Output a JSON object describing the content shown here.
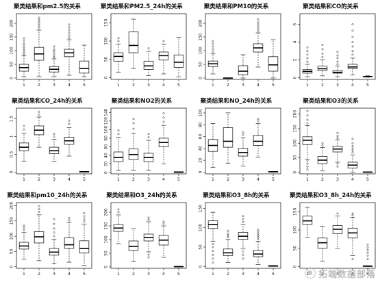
{
  "watermark": {
    "text": "拓端数据部落",
    "icon": "wechat-logo-icon"
  },
  "chart_data": [
    {
      "type": "box",
      "title": "聚类结果和pm2.5的关系",
      "categories": [
        "1",
        "2",
        "3",
        "4",
        "5"
      ],
      "yticks": [
        0,
        50,
        100,
        150,
        200
      ],
      "ylim": [
        -5,
        235
      ],
      "boxes": [
        {
          "whislo": 5,
          "q1": 25,
          "med": 38,
          "q3": 50,
          "whishi": 82,
          "outliers": [
            88,
            95,
            102,
            110,
            118,
            125,
            135,
            145
          ]
        },
        {
          "whislo": 5,
          "q1": 65,
          "med": 88,
          "q3": 112,
          "whishi": 175,
          "outliers": [
            182,
            190,
            198,
            205,
            212,
            220
          ]
        },
        {
          "whislo": 5,
          "q1": 22,
          "med": 32,
          "q3": 42,
          "whishi": 70,
          "outliers": [
            75,
            82,
            90,
            98,
            105,
            115
          ]
        },
        {
          "whislo": 10,
          "q1": 78,
          "med": 92,
          "q3": 105,
          "whishi": 140,
          "outliers": [
            146,
            155,
            165,
            175,
            185,
            195
          ]
        },
        {
          "whislo": 5,
          "q1": 18,
          "med": 35,
          "q3": 62,
          "whishi": 120,
          "outliers": []
        }
      ]
    },
    {
      "type": "box",
      "title": "聚类结果和PM2.5_24h的关系",
      "categories": [
        "1",
        "2",
        "3",
        "4",
        "5"
      ],
      "yticks": [
        0,
        50,
        100,
        150
      ],
      "ylim": [
        -5,
        175
      ],
      "boxes": [
        {
          "whislo": 15,
          "q1": 45,
          "med": 58,
          "q3": 68,
          "whishi": 92,
          "outliers": [
            100,
            108
          ]
        },
        {
          "whislo": 25,
          "q1": 68,
          "med": 88,
          "q3": 125,
          "whishi": 160,
          "outliers": []
        },
        {
          "whislo": 5,
          "q1": 22,
          "med": 32,
          "q3": 45,
          "whishi": 72,
          "outliers": [
            80
          ]
        },
        {
          "whislo": 10,
          "q1": 48,
          "med": 60,
          "q3": 70,
          "whishi": 92,
          "outliers": [
            100
          ]
        },
        {
          "whislo": 2,
          "q1": 28,
          "med": 42,
          "q3": 62,
          "whishi": 110,
          "outliers": []
        }
      ]
    },
    {
      "type": "box",
      "title": "聚类结果和PM10的关系",
      "categories": [
        "1",
        "2",
        "3",
        "4",
        "5"
      ],
      "yticks": [
        0,
        50,
        100,
        150,
        200
      ],
      "ylim": [
        -5,
        235
      ],
      "boxes": [
        {
          "whislo": 15,
          "q1": 42,
          "med": 52,
          "q3": 62,
          "whishi": 88,
          "outliers": [
            95,
            105,
            115,
            125,
            135
          ]
        },
        {
          "whislo": 0,
          "q1": 0,
          "med": 0,
          "q3": 0,
          "whishi": 0,
          "outliers": []
        },
        {
          "whislo": 0,
          "q1": 12,
          "med": 25,
          "q3": 45,
          "whishi": 85,
          "outliers": []
        },
        {
          "whislo": 40,
          "q1": 95,
          "med": 110,
          "q3": 125,
          "whishi": 165,
          "outliers": [
            172,
            180,
            188,
            196,
            205,
            215
          ]
        },
        {
          "whislo": 0,
          "q1": 25,
          "med": 48,
          "q3": 78,
          "whishi": 140,
          "outliers": []
        }
      ]
    },
    {
      "type": "box",
      "title": "聚类结果和CO的关系",
      "categories": [
        "1",
        "2",
        "3",
        "4",
        "5"
      ],
      "yticks": [
        0,
        2,
        4,
        6
      ],
      "ylim": [
        -0.2,
        7.2
      ],
      "boxes": [
        {
          "whislo": 0.1,
          "q1": 0.5,
          "med": 0.7,
          "q3": 0.9,
          "whishi": 1.5,
          "outliers": [
            1.8,
            2.2,
            2.6,
            3.0,
            3.4
          ]
        },
        {
          "whislo": 0.2,
          "q1": 0.8,
          "med": 1.0,
          "q3": 1.3,
          "whishi": 2.0,
          "outliers": [
            2.3,
            2.7,
            3.2,
            3.7
          ]
        },
        {
          "whislo": 0.1,
          "q1": 0.5,
          "med": 0.6,
          "q3": 0.8,
          "whishi": 1.3,
          "outliers": [
            1.5,
            1.8,
            2.2,
            2.5,
            2.9
          ]
        },
        {
          "whislo": 0.3,
          "q1": 1.0,
          "med": 1.2,
          "q3": 1.5,
          "whishi": 2.2,
          "outliers": [
            2.6,
            3.0,
            3.5,
            4.0,
            4.6,
            5.3,
            6.0
          ]
        },
        {
          "whislo": 0.05,
          "q1": 0.1,
          "med": 0.12,
          "q3": 0.15,
          "whishi": 0.2,
          "outliers": []
        }
      ]
    },
    {
      "type": "box",
      "title": "聚类结果和CO_24h的关系",
      "categories": [
        "1",
        "2",
        "3",
        "4",
        "5"
      ],
      "yticks": [
        0.0,
        0.5,
        1.0,
        1.5
      ],
      "ylim": [
        -0.05,
        1.8
      ],
      "boxes": [
        {
          "whislo": 0.3,
          "q1": 0.6,
          "med": 0.7,
          "q3": 0.82,
          "whishi": 1.1,
          "outliers": [
            1.2,
            1.3
          ]
        },
        {
          "whislo": 0.7,
          "q1": 1.05,
          "med": 1.18,
          "q3": 1.3,
          "whishi": 1.55,
          "outliers": [
            1.62,
            1.7
          ]
        },
        {
          "whislo": 0.3,
          "q1": 0.52,
          "med": 0.6,
          "q3": 0.7,
          "whishi": 0.92,
          "outliers": [
            1.0,
            1.08
          ]
        },
        {
          "whislo": 0.45,
          "q1": 0.78,
          "med": 0.88,
          "q3": 0.98,
          "whishi": 1.25,
          "outliers": [
            1.35,
            1.45
          ]
        },
        {
          "whislo": 0.0,
          "q1": 0.0,
          "med": 0.01,
          "q3": 0.02,
          "whishi": 0.02,
          "outliers": []
        }
      ]
    },
    {
      "type": "box",
      "title": "聚类结果和NO2的关系",
      "categories": [
        "1",
        "2",
        "3",
        "4",
        "5"
      ],
      "yticks": [
        0,
        20,
        40,
        60,
        80,
        100,
        120,
        140
      ],
      "ylim": [
        -3,
        150
      ],
      "boxes": [
        {
          "whislo": 5,
          "q1": 25,
          "med": 35,
          "q3": 48,
          "whishi": 82,
          "outliers": [
            90,
            98
          ]
        },
        {
          "whislo": 5,
          "q1": 30,
          "med": 42,
          "q3": 55,
          "whishi": 92,
          "outliers": [
            102,
            115,
            125
          ]
        },
        {
          "whislo": 5,
          "q1": 25,
          "med": 35,
          "q3": 45,
          "whishi": 75,
          "outliers": [
            82,
            90
          ]
        },
        {
          "whislo": 20,
          "q1": 60,
          "med": 70,
          "q3": 80,
          "whishi": 110,
          "outliers": [
            118,
            128,
            138
          ]
        },
        {
          "whislo": 0,
          "q1": 0,
          "med": 1,
          "q3": 2,
          "whishi": 2,
          "outliers": []
        }
      ]
    },
    {
      "type": "box",
      "title": "聚类结果和NO_24h的关系",
      "categories": [
        "1",
        "2",
        "3",
        "4",
        "5"
      ],
      "yticks": [
        0,
        20,
        40,
        60,
        80,
        100
      ],
      "ylim": [
        -3,
        108
      ],
      "boxes": [
        {
          "whislo": 8,
          "q1": 35,
          "med": 45,
          "q3": 55,
          "whishi": 82,
          "outliers": []
        },
        {
          "whislo": 15,
          "q1": 42,
          "med": 52,
          "q3": 75,
          "whishi": 100,
          "outliers": []
        },
        {
          "whislo": 10,
          "q1": 27,
          "med": 33,
          "q3": 40,
          "whishi": 58,
          "outliers": [
            63,
            67
          ]
        },
        {
          "whislo": 25,
          "q1": 45,
          "med": 52,
          "q3": 62,
          "whishi": 82,
          "outliers": [
            86,
            90
          ]
        },
        {
          "whislo": 0,
          "q1": 0,
          "med": 0.5,
          "q3": 1,
          "whishi": 1,
          "outliers": []
        }
      ]
    },
    {
      "type": "box",
      "title": "聚类结果和O3的关系",
      "categories": [
        "1",
        "2",
        "3",
        "4",
        "5"
      ],
      "yticks": [
        0,
        50,
        100,
        150,
        200
      ],
      "ylim": [
        -5,
        220
      ],
      "boxes": [
        {
          "whislo": 45,
          "q1": 95,
          "med": 110,
          "q3": 122,
          "whishi": 160,
          "outliers": [
            10,
            20,
            30,
            40,
            168,
            180,
            195,
            210
          ]
        },
        {
          "whislo": 5,
          "q1": 30,
          "med": 42,
          "q3": 55,
          "whishi": 85,
          "outliers": [
            92,
            100
          ]
        },
        {
          "whislo": 35,
          "q1": 70,
          "med": 80,
          "q3": 90,
          "whishi": 112,
          "outliers": [
            20,
            30,
            118,
            125,
            135
          ]
        },
        {
          "whislo": 0,
          "q1": 15,
          "med": 25,
          "q3": 35,
          "whishi": 60,
          "outliers": [
            68,
            75,
            82,
            90,
            100,
            115
          ]
        },
        {
          "whislo": 0,
          "q1": 0,
          "med": 1,
          "q3": 2,
          "whishi": 2,
          "outliers": []
        }
      ]
    },
    {
      "type": "box",
      "title": "聚类结果和pm10_24h的关系",
      "categories": [
        "1",
        "2",
        "3",
        "4",
        "5"
      ],
      "yticks": [
        0,
        50,
        100,
        150,
        200
      ],
      "ylim": [
        -5,
        210
      ],
      "boxes": [
        {
          "whislo": 25,
          "q1": 58,
          "med": 68,
          "q3": 80,
          "whishi": 112,
          "outliers": [
            120,
            128,
            135
          ]
        },
        {
          "whislo": 20,
          "q1": 78,
          "med": 98,
          "q3": 115,
          "whishi": 170,
          "outliers": [
            180,
            188,
            198
          ]
        },
        {
          "whislo": 10,
          "q1": 38,
          "med": 48,
          "q3": 60,
          "whishi": 90,
          "outliers": [
            100,
            112,
            125,
            140,
            155
          ]
        },
        {
          "whislo": 15,
          "q1": 60,
          "med": 72,
          "q3": 95,
          "whishi": 145,
          "outliers": [
            152,
            160
          ]
        },
        {
          "whislo": 5,
          "q1": 45,
          "med": 60,
          "q3": 85,
          "whishi": 140,
          "outliers": [
            148,
            155,
            165,
            175
          ]
        }
      ]
    },
    {
      "type": "box",
      "title": "聚类结果和O3_24h的关系",
      "categories": [
        "1",
        "2",
        "3",
        "4",
        "5"
      ],
      "yticks": [
        0,
        50,
        100,
        150,
        200
      ],
      "ylim": [
        -5,
        235
      ],
      "boxes": [
        {
          "whislo": 85,
          "q1": 130,
          "med": 142,
          "q3": 155,
          "whishi": 190,
          "outliers": [
            200,
            210
          ]
        },
        {
          "whislo": 20,
          "q1": 60,
          "med": 75,
          "q3": 95,
          "whishi": 140,
          "outliers": []
        },
        {
          "whislo": 55,
          "q1": 95,
          "med": 108,
          "q3": 120,
          "whishi": 165,
          "outliers": [
            35,
            45,
            172,
            180
          ]
        },
        {
          "whislo": 35,
          "q1": 80,
          "med": 98,
          "q3": 115,
          "whishi": 150,
          "outliers": [
            158,
            165
          ]
        },
        {
          "whislo": 0,
          "q1": 0,
          "med": 1,
          "q3": 2,
          "whishi": 2,
          "outliers": []
        }
      ]
    },
    {
      "type": "box",
      "title": "聚类结果和O3_8h的关系",
      "categories": [
        "1",
        "2",
        "3",
        "4",
        "5"
      ],
      "yticks": [
        0,
        50,
        100,
        150
      ],
      "ylim": [
        -5,
        165
      ],
      "boxes": [
        {
          "whislo": 65,
          "q1": 98,
          "med": 108,
          "q3": 118,
          "whishi": 140,
          "outliers": [
            10,
            20,
            30,
            40,
            50,
            58
          ]
        },
        {
          "whislo": 10,
          "q1": 28,
          "med": 35,
          "q3": 45,
          "whishi": 70,
          "outliers": [
            75,
            80,
            85,
            92
          ]
        },
        {
          "whislo": 45,
          "q1": 70,
          "med": 78,
          "q3": 88,
          "whishi": 108,
          "outliers": [
            20,
            30,
            38,
            115,
            122,
            130
          ]
        },
        {
          "whislo": 5,
          "q1": 25,
          "med": 32,
          "q3": 42,
          "whishi": 65,
          "outliers": [
            70,
            75,
            80,
            85,
            90,
            95
          ]
        },
        {
          "whislo": 0,
          "q1": 0,
          "med": 1,
          "q3": 2,
          "whishi": 2,
          "outliers": []
        }
      ]
    },
    {
      "type": "box",
      "title": "聚类结果和O3_8h_24h的关系",
      "categories": [
        "1",
        "2",
        "3",
        "4",
        "5"
      ],
      "yticks": [
        0,
        50,
        100,
        150
      ],
      "ylim": [
        -5,
        175
      ],
      "boxes": [
        {
          "whislo": 80,
          "q1": 115,
          "med": 125,
          "q3": 138,
          "whishi": 162,
          "outliers": []
        },
        {
          "whislo": 15,
          "q1": 50,
          "med": 65,
          "q3": 78,
          "whishi": 110,
          "outliers": []
        },
        {
          "whislo": 50,
          "q1": 90,
          "med": 102,
          "q3": 112,
          "whishi": 138,
          "outliers": [
            145
          ]
        },
        {
          "whislo": 30,
          "q1": 78,
          "med": 92,
          "q3": 105,
          "whishi": 135,
          "outliers": [
            20,
            140,
            145
          ]
        },
        {
          "whislo": 0,
          "q1": 0,
          "med": 1,
          "q3": 2,
          "whishi": 2,
          "outliers": [
            20,
            30,
            38,
            45,
            52,
            60
          ]
        }
      ]
    }
  ]
}
